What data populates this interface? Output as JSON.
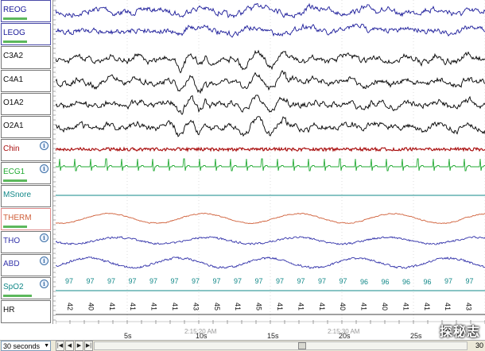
{
  "channels": [
    {
      "name": "REOG",
      "color": "#1a1a99",
      "bar": true,
      "info": false
    },
    {
      "name": "LEOG",
      "color": "#1a1a99",
      "bar": true,
      "info": false
    },
    {
      "name": "C3A2",
      "color": "#000000",
      "bar": false,
      "info": false
    },
    {
      "name": "C4A1",
      "color": "#000000",
      "bar": false,
      "info": false
    },
    {
      "name": "O1A2",
      "color": "#000000",
      "bar": false,
      "info": false
    },
    {
      "name": "O2A1",
      "color": "#000000",
      "bar": false,
      "info": false
    },
    {
      "name": "Chin",
      "color": "#aa1111",
      "bar": false,
      "info": true
    },
    {
      "name": "ECG1",
      "color": "#22aa33",
      "bar": true,
      "info": true
    },
    {
      "name": "MSnore",
      "color": "#118888",
      "bar": false,
      "info": false
    },
    {
      "name": "THERM",
      "color": "#d0603a",
      "bar": true,
      "info": false
    },
    {
      "name": "THO",
      "color": "#3333aa",
      "bar": false,
      "info": true
    },
    {
      "name": "ABD",
      "color": "#3333aa",
      "bar": false,
      "info": true
    },
    {
      "name": "SpO2",
      "color": "#118888",
      "bar": true,
      "info": true
    },
    {
      "name": "HR",
      "color": "#000000",
      "bar": false,
      "info": false
    }
  ],
  "spo2_values": [
    "97",
    "97",
    "97",
    "97",
    "97",
    "97",
    "97",
    "97",
    "97",
    "97",
    "97",
    "97",
    "97",
    "97",
    "96",
    "96",
    "96",
    "96",
    "97",
    "97",
    "97"
  ],
  "hr_values": [
    "42",
    "40",
    "41",
    "41",
    "41",
    "41",
    "43",
    "45",
    "41",
    "45",
    "41",
    "41",
    "41",
    "40",
    "41",
    "40",
    "41",
    "41",
    "41",
    "43",
    "41"
  ],
  "timeline": {
    "clock_labels": [
      "2:15:20 AM",
      "2:15:30 AM"
    ],
    "second_labels": [
      "5s",
      "10s",
      "15s",
      "20s",
      "25s"
    ]
  },
  "controls": {
    "epoch_value": "30 seconds",
    "right_value": "30",
    "first_icon": "first-page-icon",
    "prev_icon": "previous-page-icon",
    "next_icon": "next-page-icon",
    "last_icon": "last-page-icon"
  },
  "watermark": "探秘志"
}
